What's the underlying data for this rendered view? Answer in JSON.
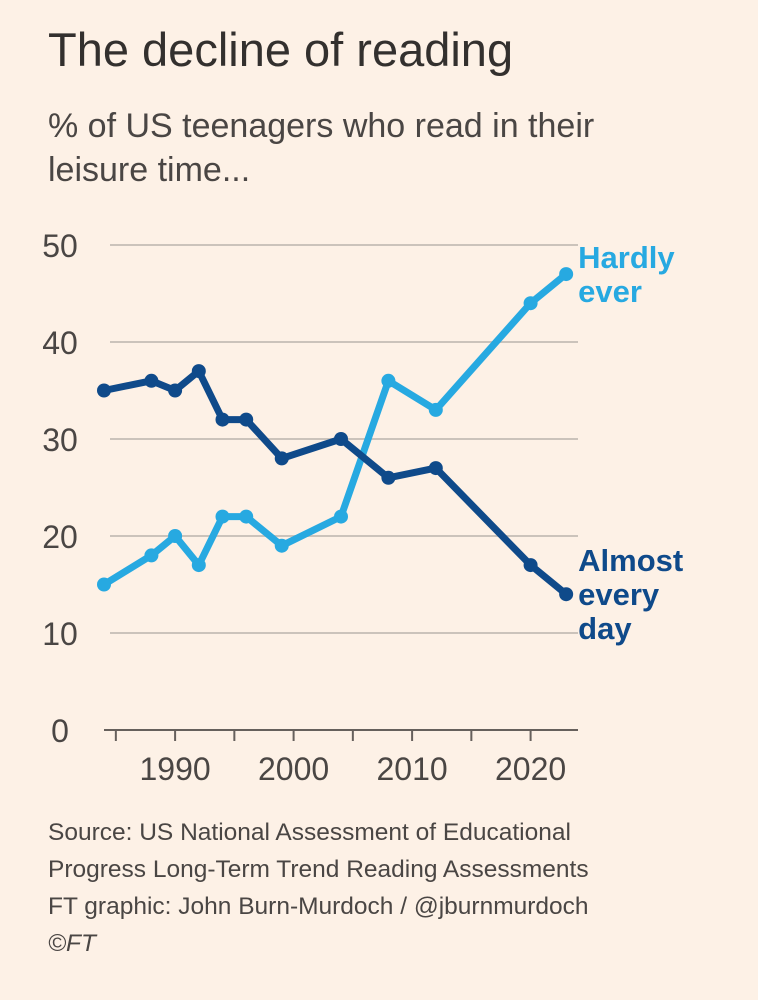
{
  "header": {
    "title": "The decline of reading",
    "subtitle": "% of US teenagers who read in their leisure time..."
  },
  "chart_data": {
    "type": "line",
    "title": "The decline of reading",
    "subtitle": "% of US teenagers who read in their leisure time...",
    "xlabel": "",
    "ylabel": "",
    "xlim": [
      1984,
      2024
    ],
    "ylim": [
      0,
      50
    ],
    "y_ticks": [
      0,
      10,
      20,
      30,
      40,
      50
    ],
    "x_ticks_minor": [
      1985,
      1990,
      1995,
      2000,
      2005,
      2010,
      2015,
      2020
    ],
    "x_tick_labels": [
      1990,
      2000,
      2010,
      2020
    ],
    "grid": true,
    "legend": "direct labels at line ends",
    "series": [
      {
        "name": "Hardly ever",
        "label_lines": [
          "Hardly",
          "ever"
        ],
        "color": "#27a9e1",
        "x": [
          1984,
          1988,
          1990,
          1992,
          1994,
          1996,
          1999,
          2004,
          2008,
          2012,
          2020,
          2023
        ],
        "values": [
          15,
          18,
          20,
          17,
          22,
          22,
          19,
          22,
          36,
          33,
          44,
          47
        ]
      },
      {
        "name": "Almost every day",
        "label_lines": [
          "Almost",
          "every",
          "day"
        ],
        "color": "#0f4a8a",
        "x": [
          1984,
          1988,
          1990,
          1992,
          1994,
          1996,
          1999,
          2004,
          2008,
          2012,
          2020,
          2023
        ],
        "values": [
          35,
          36,
          35,
          37,
          32,
          32,
          28,
          30,
          26,
          27,
          17,
          14
        ]
      }
    ]
  },
  "footer": {
    "source_line1": "Source: US National Assessment of Educational",
    "source_line2": "Progress Long-Term Trend Reading Assessments",
    "credit": "FT graphic: John Burn-Murdoch / @jburnmurdoch",
    "copyright": "©FT"
  }
}
